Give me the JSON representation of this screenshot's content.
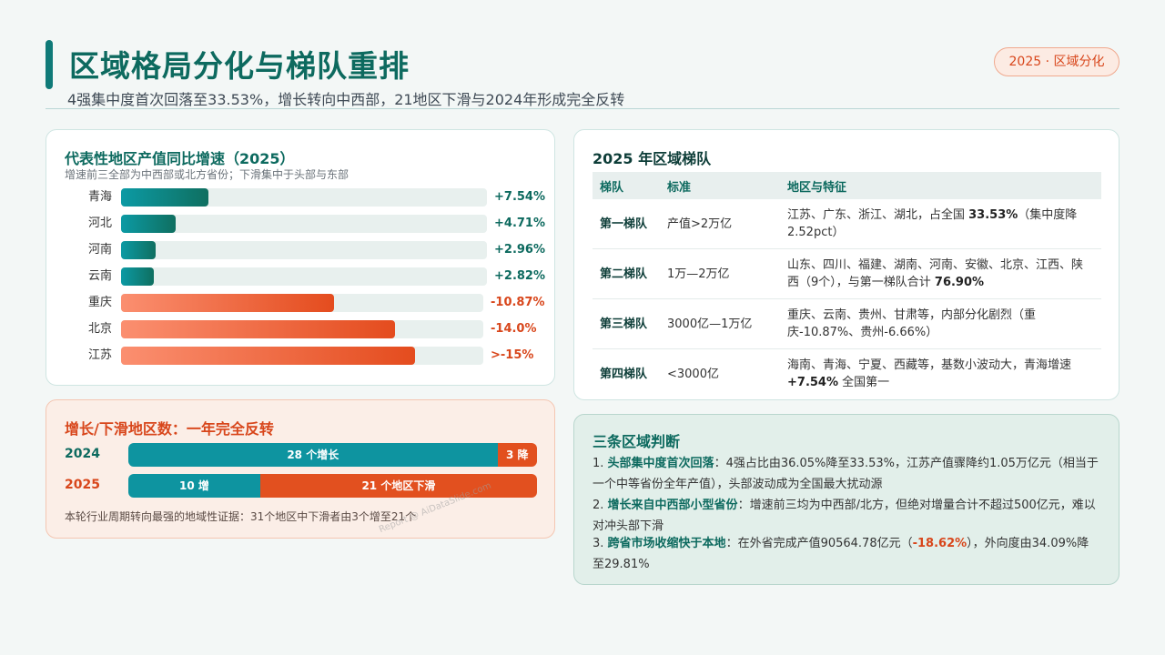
{
  "header": {
    "title": "区域格局分化与梯队重排",
    "subtitle": "4强集中度首次回落至33.53%，增长转向中西部，21地区下滑与2024年形成完全反转",
    "tag": "2025 · 区域分化"
  },
  "growth_card": {
    "title": "代表性地区产值同比增速（2025）",
    "note": "增速前三全部为中西部或北方省份；下滑集中于头部与东部"
  },
  "flip_card": {
    "title": "增长/下滑地区数：一年完全反转",
    "note": "本轮行业周期转向最强的地域性证据：31个地区中下滑者由3个增至21个"
  },
  "tier_card": {
    "title": "2025 年区域梯队",
    "headers": [
      "梯队",
      "标准",
      "地区与特征"
    ],
    "rows": [
      {
        "tier": "第一梯队",
        "criterion": "产值>2万亿",
        "desc_a": "江苏、广东、浙江、湖北，占全国 ",
        "desc_b": "33.53%",
        "desc_c": "（集中度降2.52pct）"
      },
      {
        "tier": "第二梯队",
        "criterion": "1万—2万亿",
        "desc_a": "山东、四川、福建、湖南、河南、安徽、北京、江西、陕西（9个），与第一梯队合计 ",
        "desc_b": "76.90%",
        "desc_c": ""
      },
      {
        "tier": "第三梯队",
        "criterion": "3000亿—1万亿",
        "desc_a": "重庆、云南、贵州、甘肃等，内部分化剧烈（重庆-10.87%、贵州-6.66%）",
        "desc_b": "",
        "desc_c": ""
      },
      {
        "tier": "第四梯队",
        "criterion": "<3000亿",
        "desc_a": "海南、青海、宁夏、西藏等，基数小波动大，青海增速 ",
        "desc_b": "+7.54%",
        "desc_c": " 全国第一"
      }
    ]
  },
  "judgment_card": {
    "title": "三条区域判断",
    "items": [
      {
        "num": "1. ",
        "head": "头部集中度首次回落",
        "body_a": "：4强占比由36.05%降至33.53%，江苏产值骤降约1.05万亿元（相当于一个中等省份全年产值），头部波动成为全国最大扰动源",
        "hi": "",
        "body_b": ""
      },
      {
        "num": "2. ",
        "head": "增长来自中西部小型省份",
        "body_a": "：增速前三均为中西部/北方，但绝对增量合计不超过500亿元，难以对冲头部下滑",
        "hi": "",
        "body_b": ""
      },
      {
        "num": "3. ",
        "head": "跨省市场收缩快于本地",
        "body_a": "：在外省完成产值90564.78亿元（",
        "hi": "-18.62%",
        "body_b": "），外向度由34.09%降至29.81%"
      }
    ]
  },
  "watermark": "Report @ AiDataSlide.com",
  "colors": {
    "primary": "#0d6a5f",
    "accent": "#d8461b",
    "teal_bar": "#0e94a0",
    "red_bar": "#e2501f"
  },
  "chart_data": [
    {
      "type": "bar",
      "orientation": "horizontal",
      "title": "代表性地区产值同比增速（2025）",
      "categories": [
        "青海",
        "河北",
        "河南",
        "云南",
        "重庆",
        "北京",
        "江苏"
      ],
      "values": [
        7.54,
        4.71,
        2.96,
        2.82,
        -10.87,
        -14.0,
        -15
      ],
      "value_labels": [
        "+7.54%",
        "+4.71%",
        "+2.96%",
        "+2.82%",
        "-10.87%",
        "-14.0%",
        ">-15%"
      ],
      "unit": "%"
    },
    {
      "type": "bar",
      "stacked": true,
      "orientation": "horizontal",
      "title": "增长/下滑地区数：一年完全反转",
      "categories": [
        "2024",
        "2025"
      ],
      "series": [
        {
          "name": "增长",
          "values": [
            28,
            10
          ],
          "labels": [
            "28 个增长",
            "10 增"
          ]
        },
        {
          "name": "下滑",
          "values": [
            3,
            21
          ],
          "labels": [
            "3 降",
            "21 个地区下滑"
          ]
        }
      ],
      "total": 31
    }
  ]
}
